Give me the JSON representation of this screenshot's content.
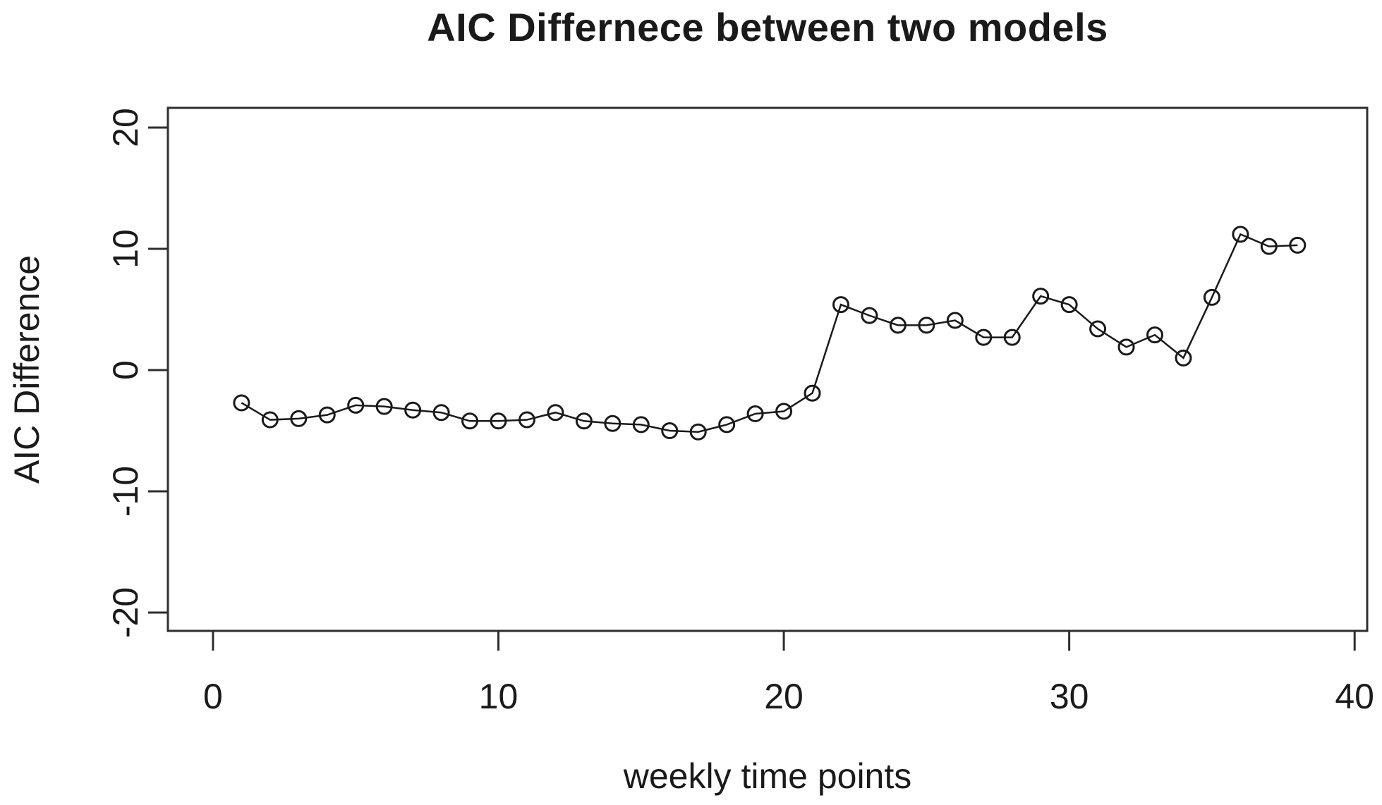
{
  "chart_data": {
    "type": "line",
    "title": "AIC Differnece between two models",
    "xlabel": "weekly time points",
    "ylabel": "AIC Difference",
    "x": [
      1,
      2,
      3,
      4,
      5,
      6,
      7,
      8,
      9,
      10,
      11,
      12,
      13,
      14,
      15,
      16,
      17,
      18,
      19,
      20,
      21,
      22,
      23,
      24,
      25,
      26,
      27,
      28,
      29,
      30,
      31,
      32,
      33,
      34,
      35,
      36,
      37,
      38
    ],
    "y": [
      -2.7,
      -4.1,
      -4.0,
      -3.7,
      -2.9,
      -3.0,
      -3.3,
      -3.5,
      -4.2,
      -4.2,
      -4.1,
      -3.5,
      -4.2,
      -4.4,
      -4.5,
      -5.0,
      -5.1,
      -4.5,
      -3.6,
      -3.4,
      -1.9,
      5.4,
      4.5,
      3.7,
      3.7,
      4.1,
      2.7,
      2.7,
      6.1,
      5.4,
      3.4,
      1.9,
      2.9,
      1.0,
      6.0,
      11.2,
      10.2,
      10.3
    ],
    "xticks": [
      0,
      10,
      20,
      30,
      40
    ],
    "xtick_labels": [
      "0",
      "10",
      "20",
      "30",
      "40"
    ],
    "yticks": [
      -20,
      -10,
      0,
      10,
      20
    ],
    "ytick_labels": [
      "-20",
      "-10",
      "0",
      "10",
      "20"
    ],
    "xlim": [
      -1.58,
      40.44
    ],
    "ylim": [
      -21.51,
      21.63
    ],
    "grid": false,
    "legend": null,
    "marker": "open-circle",
    "line_color": "#1a1a1a",
    "axis_color": "#2e2e2e",
    "background_color": "#ffffff"
  }
}
